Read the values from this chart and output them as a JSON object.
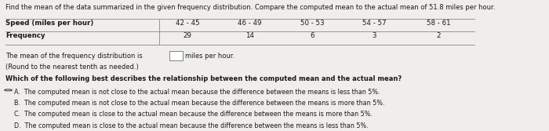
{
  "title": "Find the mean of the data summarized in the given frequency distribution. Compare the computed mean to the actual mean of 51.8 miles per hour.",
  "table_header_col1": "Speed (miles per hour)",
  "table_header_col2": "Frequency",
  "speed_ranges": [
    "42 - 45",
    "46 - 49",
    "50 - 53",
    "54 - 57",
    "58 - 61"
  ],
  "frequencies": [
    29,
    14,
    6,
    3,
    2
  ],
  "mean_label": "The mean of the frequency distribution is",
  "mean_unit": "miles per hour.",
  "mean_note": "(Round to the nearest tenth as needed.)",
  "question": "Which of the following best describes the relationship between the computed mean and the actual mean?",
  "options": [
    "A.  The computed mean is not close to the actual mean because the difference between the means is less than 5%.",
    "B.  The computed mean is not close to the actual mean because the difference between the means is more than 5%.",
    "C.  The computed mean is close to the actual mean because the difference between the means is more than 5%.",
    "D.  The computed mean is close to the actual mean because the difference between the means is less than 5%."
  ],
  "bg_color": "#f0eeea",
  "text_color": "#1a1a1a",
  "table_line_color": "#888888",
  "box_color": "#ffffff",
  "font_size_title": 6.0,
  "font_size_table": 6.2,
  "font_size_body": 6.0,
  "font_size_options": 5.8
}
